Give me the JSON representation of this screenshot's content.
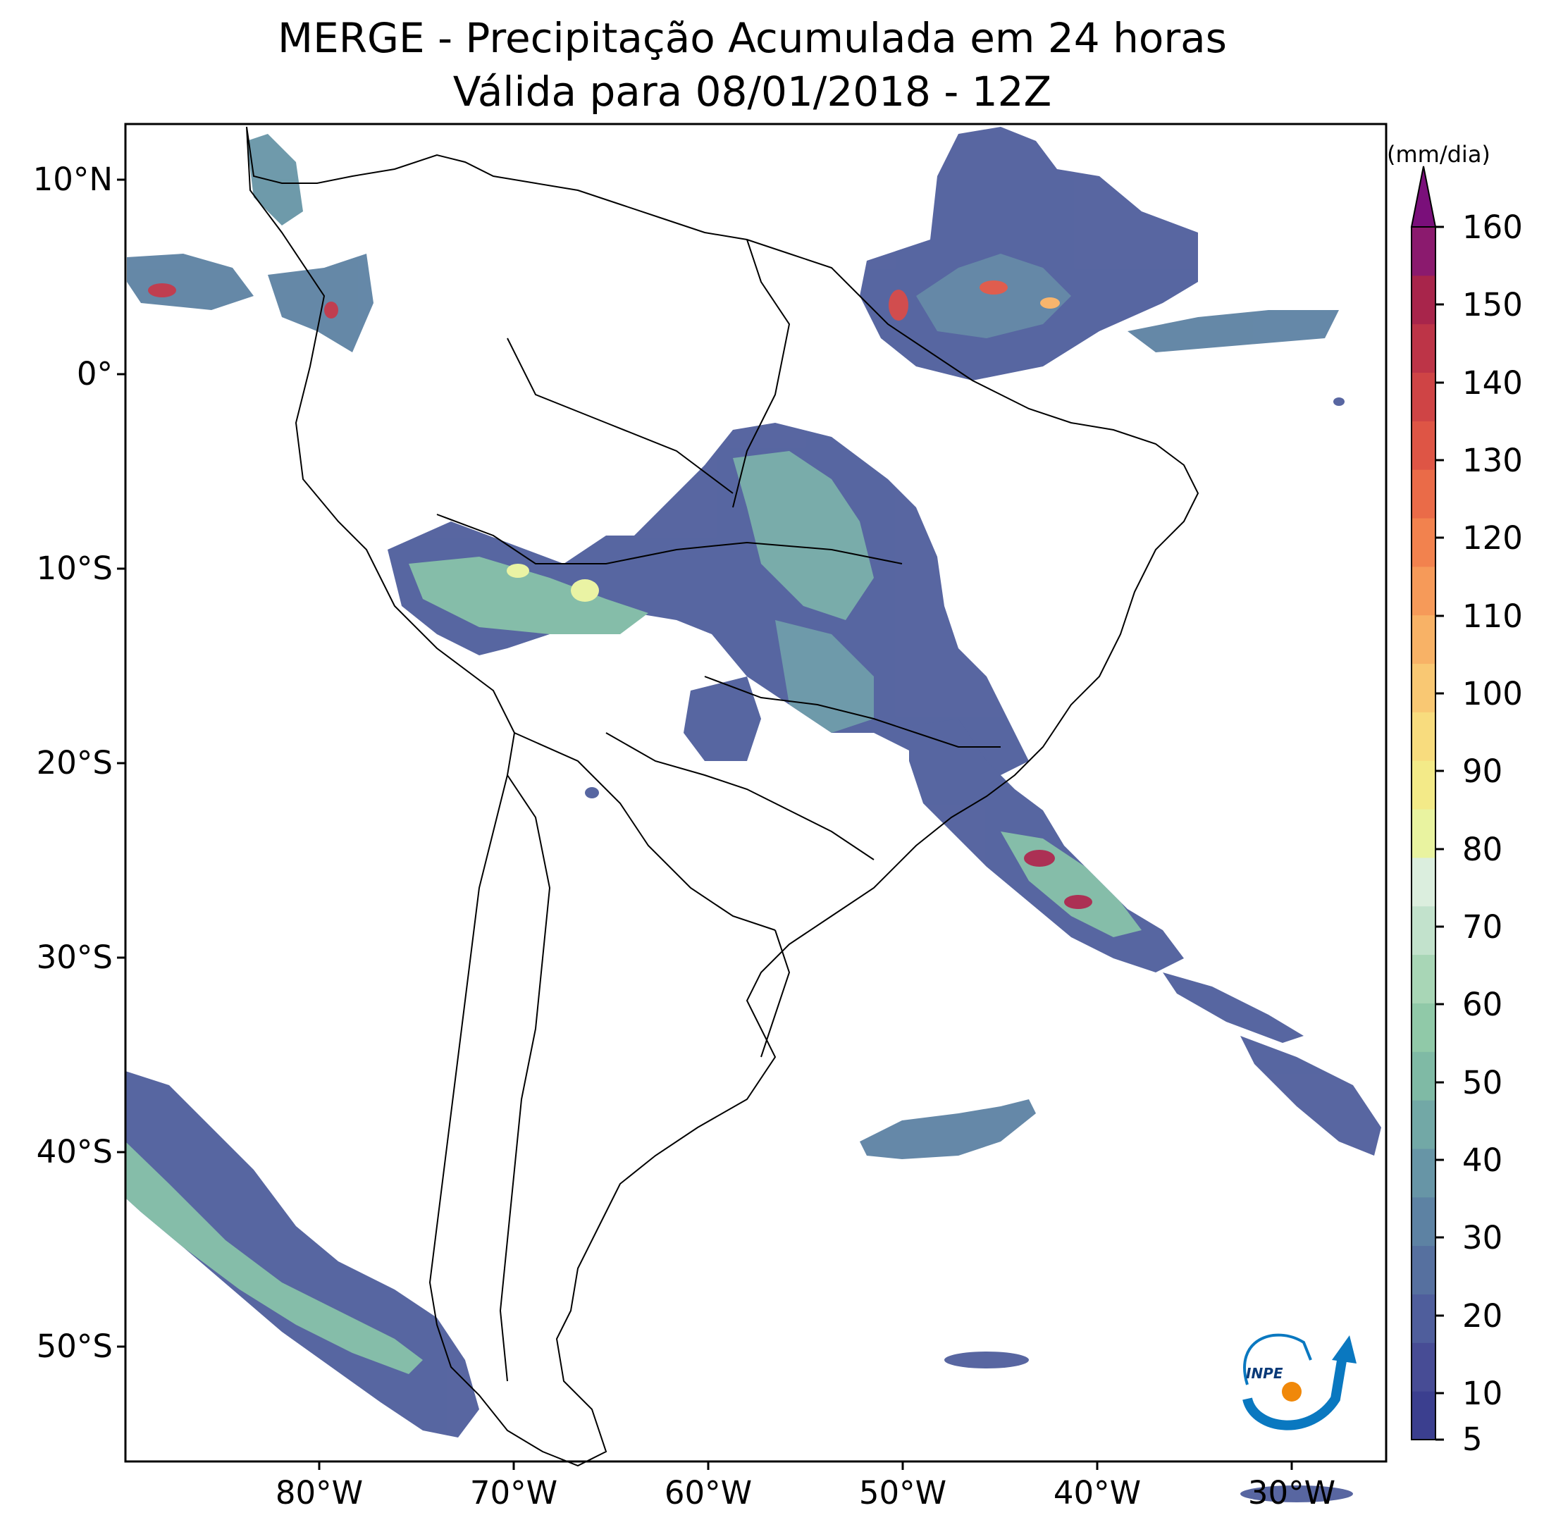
{
  "title": {
    "line1": "MERGE - Precipitação Acumulada em 24 horas",
    "line2": "Válida para 08/01/2018 - 12Z"
  },
  "axes": {
    "lat_labels": [
      "10°N",
      "0°",
      "10°S",
      "20°S",
      "30°S",
      "40°S",
      "50°S"
    ],
    "lon_labels": [
      "80°W",
      "70°W",
      "60°W",
      "50°W",
      "40°W",
      "30°W"
    ]
  },
  "colorbar": {
    "unit": "(mm/dia)",
    "ticks": [
      "160",
      "150",
      "140",
      "130",
      "120",
      "110",
      "100",
      "90",
      "80",
      "70",
      "60",
      "50",
      "40",
      "30",
      "20",
      "10",
      "5"
    ],
    "colors": [
      "#3b3f8f",
      "#474c95",
      "#4f5e9c",
      "#56709f",
      "#5d82a3",
      "#6795a6",
      "#72a8a6",
      "#7fbaa5",
      "#90c9a8",
      "#a8d6b6",
      "#c2e2cc",
      "#dbeede",
      "#e9f3a0",
      "#f3ea88",
      "#f8dc7e",
      "#f9c873",
      "#f8b266",
      "#f69a59",
      "#f2824e",
      "#ea6b48",
      "#de5545",
      "#cf4445",
      "#bd3447",
      "#a8254b",
      "#8b1a6e",
      "#7a0f7a"
    ]
  },
  "logo": {
    "text": "INPE"
  }
}
